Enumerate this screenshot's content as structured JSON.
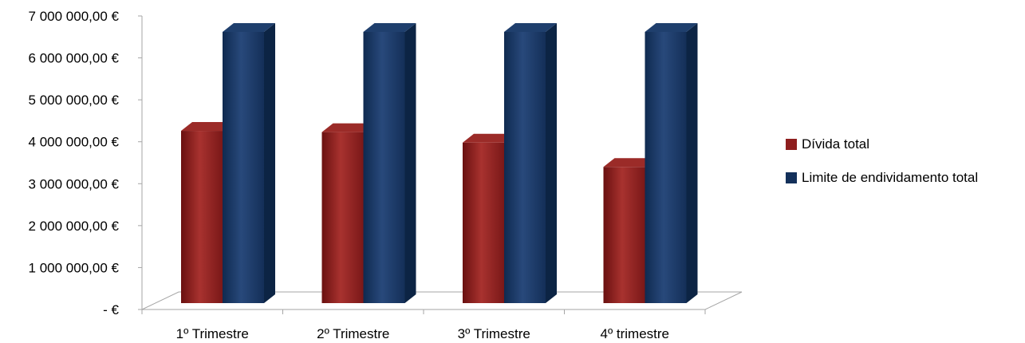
{
  "chart_data": {
    "type": "bar",
    "title": "",
    "xlabel": "",
    "ylabel": "",
    "categories": [
      "1º Trimestre",
      "2º Trimestre",
      "3º Trimestre",
      "4º trimestre"
    ],
    "series": [
      {
        "name": "Dívida total",
        "color": "#8e1e1e",
        "values": [
          4260000,
          4230000,
          3980000,
          3400000
        ]
      },
      {
        "name": "Limite de endividamento total",
        "color": "#13305a",
        "values": [
          6620000,
          6620000,
          6620000,
          6620000
        ]
      }
    ],
    "ylim": [
      0,
      7000000
    ],
    "yticks": [
      0,
      1000000,
      2000000,
      3000000,
      4000000,
      5000000,
      6000000,
      7000000
    ],
    "ytick_labels": [
      "-   €",
      "1 000 000,00 €",
      "2 000 000,00 €",
      "3 000 000,00 €",
      "4 000 000,00 €",
      "5 000 000,00 €",
      "6 000 000,00 €",
      "7 000 000,00 €"
    ],
    "grid": false,
    "legend_position": "right",
    "style": "3d-column"
  }
}
